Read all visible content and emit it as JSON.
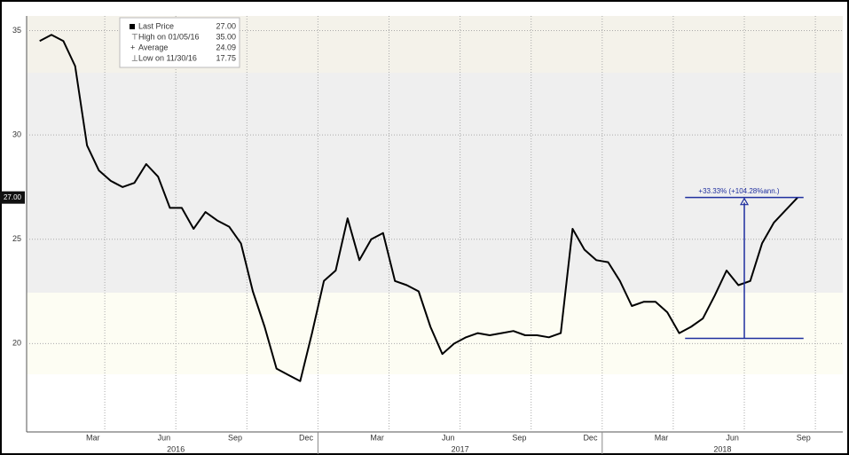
{
  "chart_data": {
    "type": "line",
    "categories": [
      null,
      null,
      null,
      null,
      "Mar",
      null,
      null,
      null,
      null,
      null,
      "Jun",
      null,
      null,
      null,
      null,
      null,
      "Sep",
      null,
      null,
      null,
      null,
      null,
      "Dec",
      null,
      null,
      null,
      null,
      null,
      "Mar",
      null,
      null,
      null,
      null,
      null,
      "Jun",
      null,
      null,
      null,
      null,
      null,
      "Sep",
      null,
      null,
      null,
      null,
      null,
      "Dec",
      null,
      null,
      null,
      null,
      null,
      "Mar",
      null,
      null,
      null,
      null,
      null,
      "Jun",
      null,
      null,
      null,
      null,
      null,
      "Sep",
      null,
      null,
      null
    ],
    "years": [
      "2016",
      "2017",
      "2018"
    ],
    "series": [
      {
        "name": "Last Price",
        "color": "#000000",
        "values": [
          34.5,
          34.8,
          34.5,
          33.3,
          29.5,
          28.3,
          27.8,
          27.5,
          27.7,
          28.6,
          28,
          26.5,
          26.5,
          25.5,
          26.3,
          25.9,
          25.6,
          24.8,
          22.5,
          20.8,
          18.8,
          18.5,
          18.2,
          20.5,
          23,
          23.5,
          26,
          24,
          25,
          25.3,
          23,
          22.8,
          22.5,
          20.8,
          19.5,
          20,
          20.3,
          20.5,
          20.4,
          20.5,
          20.6,
          20.4,
          20.4,
          20.3,
          20.5,
          25.5,
          24.5,
          24,
          23.9,
          23,
          21.8,
          22,
          22,
          21.5,
          20.5,
          20.8,
          21.2,
          22.3,
          23.5,
          22.8,
          23,
          24.8,
          25.8,
          26.4,
          27,
          null,
          null,
          null
        ]
      }
    ],
    "ylim": [
      15.85,
      35.7
    ],
    "yticks": [
      20,
      25,
      30,
      35
    ],
    "grid": true,
    "last_price_label": "27.00",
    "legend": {
      "rows": [
        {
          "label": "Last Price",
          "value": "27.00"
        },
        {
          "label": "High on 01/05/16",
          "value": "35.00"
        },
        {
          "label": "Average",
          "value": "24.09"
        },
        {
          "label": "Low on 11/30/16",
          "value": "17.75"
        }
      ]
    },
    "annotation": {
      "label": "+33.33% (+104.28%ann.)",
      "from_value": 20.25,
      "to_value": 27
    }
  }
}
